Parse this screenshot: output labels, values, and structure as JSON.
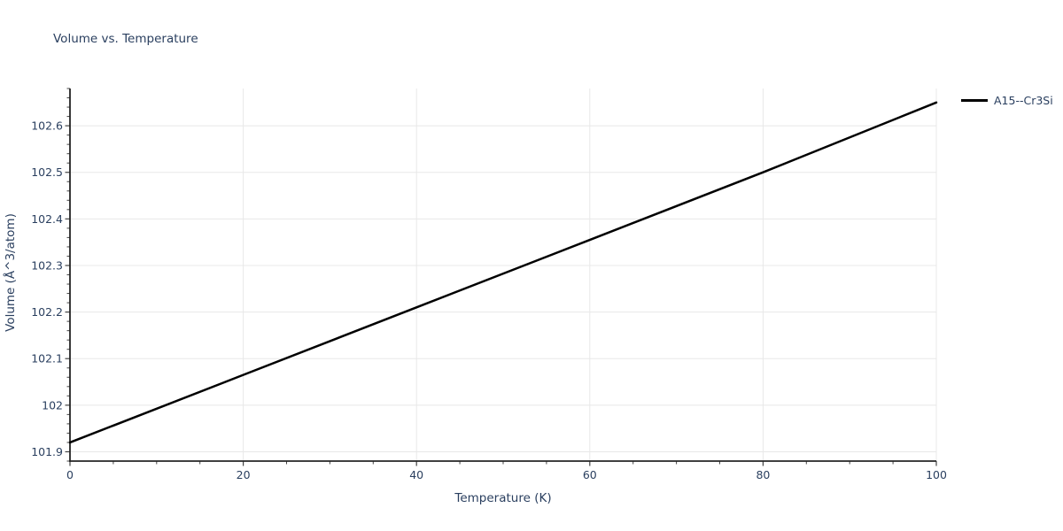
{
  "chart": {
    "title": "Volume vs. Temperature",
    "xlabel": "Temperature (K)",
    "ylabel": "Volume (Å^3/atom)",
    "legend": {
      "series_label": "A15--Cr3Si"
    }
  },
  "chart_data": {
    "type": "line",
    "title": "Volume vs. Temperature",
    "xlabel": "Temperature (K)",
    "ylabel": "Volume (Å^3/atom)",
    "series": [
      {
        "name": "A15--Cr3Si",
        "color": "#000000",
        "line_width": 2.5,
        "x": [
          0,
          20,
          40,
          60,
          80,
          100
        ],
        "y": [
          101.92,
          102.065,
          102.21,
          102.355,
          102.5,
          102.65
        ]
      }
    ],
    "xlim": [
      0,
      100
    ],
    "ylim": [
      101.88,
      102.68
    ],
    "x_major_ticks": [
      0,
      20,
      40,
      60,
      80,
      100
    ],
    "x_tick_labels": [
      "0",
      "20",
      "40",
      "60",
      "80",
      "100"
    ],
    "x_minor_step": 5,
    "y_major_ticks": [
      101.9,
      102.0,
      102.1,
      102.2,
      102.3,
      102.4,
      102.5,
      102.6
    ],
    "y_tick_labels": [
      "101.9",
      "102",
      "102.1",
      "102.2",
      "102.3",
      "102.4",
      "102.5",
      "102.6"
    ],
    "y_minor_step": 0.02,
    "grid": "major",
    "legend_position": "top-right",
    "colors": {
      "font": "#2a3f5f",
      "grid": "#e8e8e8",
      "axis_line": "#242424",
      "tick": "#444444",
      "background": "#ffffff"
    }
  }
}
